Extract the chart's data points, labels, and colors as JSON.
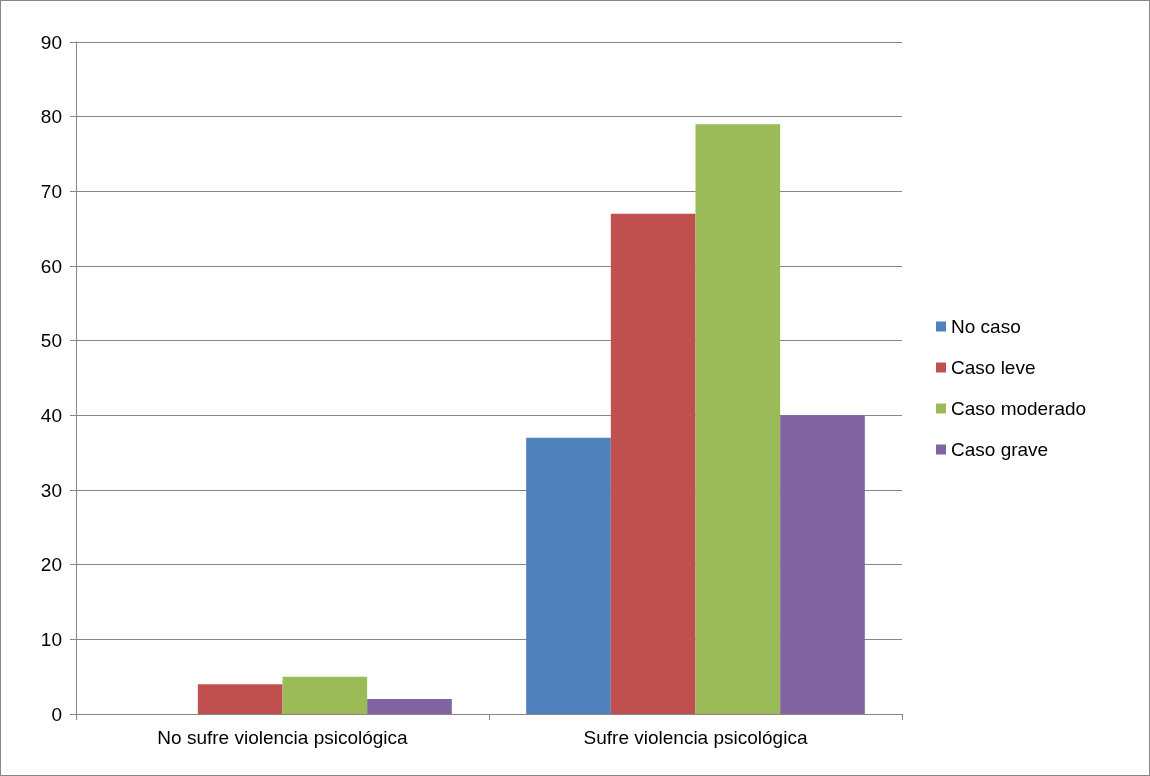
{
  "chart_data": {
    "type": "bar",
    "categories": [
      "No sufre violencia psicológica",
      "Sufre violencia psicológica"
    ],
    "series": [
      {
        "name": "No caso",
        "color": "#4f81bd",
        "values": [
          0,
          37
        ]
      },
      {
        "name": "Caso leve",
        "color": "#c0504d",
        "values": [
          4,
          67
        ]
      },
      {
        "name": "Caso moderado",
        "color": "#9bbb59",
        "values": [
          5,
          79
        ]
      },
      {
        "name": "Caso grave",
        "color": "#8064a2",
        "values": [
          2,
          40
        ]
      }
    ],
    "ylim": [
      0,
      90
    ],
    "yticks": [
      0,
      10,
      20,
      30,
      40,
      50,
      60,
      70,
      80,
      90
    ],
    "grid": "y",
    "legend": "right"
  }
}
